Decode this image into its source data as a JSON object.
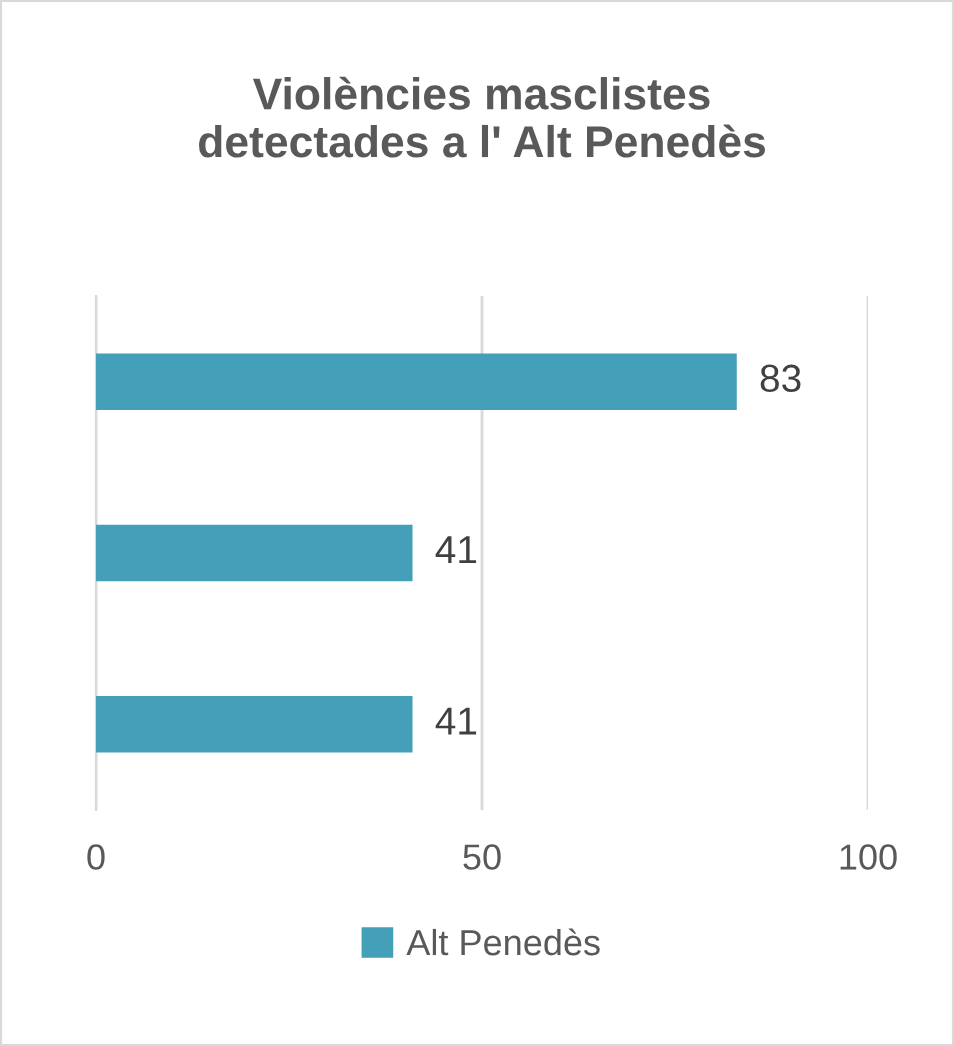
{
  "chart_data": {
    "type": "bar",
    "orientation": "horizontal",
    "title": "Violències masclistes\ndetectades a l' Alt Penedès",
    "categories": [
      null,
      null,
      null
    ],
    "series": [
      {
        "name": "Alt Penedès",
        "color": "#43a0b8",
        "values": [
          83,
          41,
          41
        ]
      }
    ],
    "xlim": [
      0,
      100
    ],
    "xticks": [
      0,
      50,
      100
    ],
    "grid": "x",
    "data_labels": true,
    "legend": "bottom",
    "tick_labels": "x"
  }
}
